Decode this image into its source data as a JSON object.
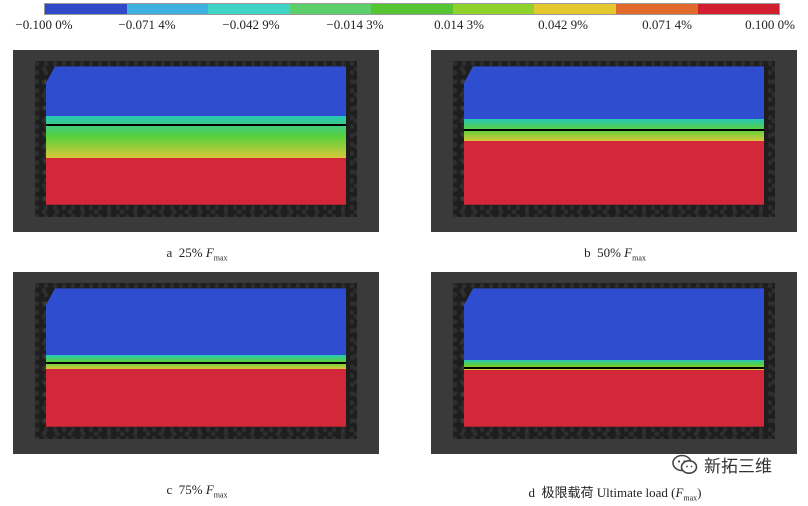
{
  "scale": {
    "colors": [
      "#3049c8",
      "#3fb1e0",
      "#3fd4c6",
      "#5bd06a",
      "#56c534",
      "#8fd22a",
      "#e5c72e",
      "#e06a2c",
      "#d21f30"
    ],
    "labels": [
      "−0.100 0%",
      "−0.071 4%",
      "−0.042 9%",
      "−0.014 3%",
      "0.014 3%",
      "0.042 9%",
      "0.071 4%",
      "0.100 0%"
    ]
  },
  "panels": [
    {
      "id": "a",
      "letter": "a",
      "caption_text": "25% ",
      "caption_var": "F",
      "caption_sub": "max",
      "caption_tail": "",
      "blue_frac": 0.36,
      "green_frac": 0.3,
      "line_frac": 0.42
    },
    {
      "id": "b",
      "letter": "b",
      "caption_text": "50% ",
      "caption_var": "F",
      "caption_sub": "max",
      "caption_tail": "",
      "blue_frac": 0.38,
      "green_frac": 0.16,
      "line_frac": 0.45
    },
    {
      "id": "c",
      "letter": "c",
      "caption_text": "75% ",
      "caption_var": "F",
      "caption_sub": "max",
      "caption_tail": "",
      "blue_frac": 0.48,
      "green_frac": 0.1,
      "line_frac": 0.53
    },
    {
      "id": "d",
      "letter": "d",
      "caption_text": "极限载荷 Ultimate load (",
      "caption_var": "F",
      "caption_sub": "max",
      "caption_tail": ")",
      "blue_frac": 0.52,
      "green_frac": 0.07,
      "line_frac": 0.57
    }
  ],
  "watermark": {
    "text": "新拓三维",
    "icon": "wechat-icon"
  }
}
